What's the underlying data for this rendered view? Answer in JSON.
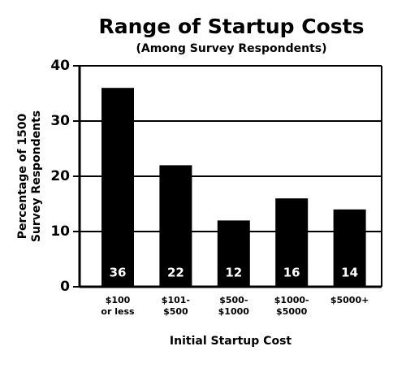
{
  "chart_data": {
    "type": "bar",
    "title": "Range of Startup Costs",
    "subtitle": "(Among Survey Respondents)",
    "ylabel": [
      "Percentage of 1500",
      "Survey Respondents"
    ],
    "xlabel": "Initial Startup Cost",
    "categories": [
      [
        "$100",
        "or less"
      ],
      [
        "$101-",
        "$500"
      ],
      [
        "$500-",
        "$1000"
      ],
      [
        "$1000-",
        "$5000"
      ],
      [
        "$5000+"
      ]
    ],
    "values": [
      36,
      22,
      12,
      16,
      14
    ],
    "color": "#000000",
    "ylim": [
      0,
      40
    ],
    "yticks": [
      0,
      10,
      20,
      30,
      40
    ],
    "grid": true
  }
}
